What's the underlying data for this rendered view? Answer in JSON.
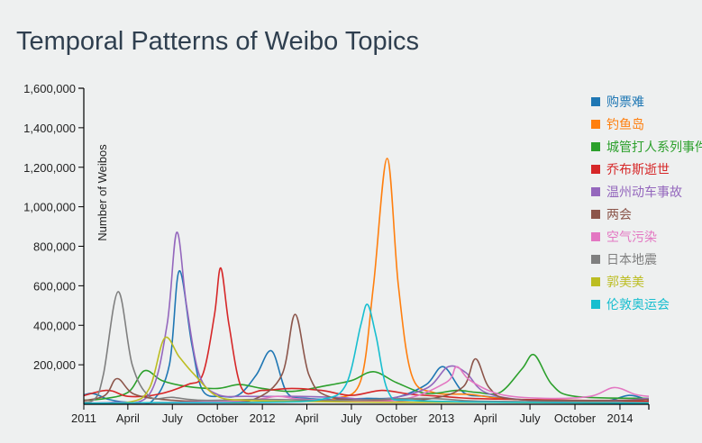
{
  "page": {
    "title": "Temporal Patterns of Weibo Topics"
  },
  "chart_data": {
    "type": "line",
    "title": "Temporal Patterns of Weibo Topics",
    "ylabel": "Number of Weibos",
    "xlabel": "",
    "ylim": [
      0,
      1600000
    ],
    "y_ticks": [
      200000,
      400000,
      600000,
      800000,
      1000000,
      1200000,
      1400000,
      1600000
    ],
    "y_tick_labels": [
      "200,000",
      "400,000",
      "600,000",
      "800,000",
      "1,000,000",
      "1,200,000",
      "1,400,000",
      "1,600,000"
    ],
    "x_start": "2011-01-01",
    "x_end": "2014-03-01",
    "x_ticks": [
      "2011-01-01",
      "2011-04-01",
      "2011-07-01",
      "2011-10-01",
      "2012-01-01",
      "2012-04-01",
      "2012-07-01",
      "2012-10-01",
      "2013-01-01",
      "2013-04-01",
      "2013-07-01",
      "2013-10-01",
      "2014-01-01"
    ],
    "x_tick_labels": [
      "2011",
      "April",
      "July",
      "October",
      "2012",
      "April",
      "July",
      "October",
      "2013",
      "April",
      "July",
      "October",
      "2014"
    ],
    "legend_position": "right",
    "series": [
      {
        "name": "购票难",
        "color": "#1f77b4",
        "points": [
          [
            "2010-12-01",
            15000
          ],
          [
            "2011-01-15",
            55000
          ],
          [
            "2011-02-20",
            25000
          ],
          [
            "2011-04-01",
            10000
          ],
          [
            "2011-05-20",
            15000
          ],
          [
            "2011-06-25",
            200000
          ],
          [
            "2011-07-15",
            675000
          ],
          [
            "2011-08-10",
            300000
          ],
          [
            "2011-09-01",
            70000
          ],
          [
            "2011-10-10",
            40000
          ],
          [
            "2011-11-15",
            50000
          ],
          [
            "2011-12-20",
            150000
          ],
          [
            "2012-01-20",
            270000
          ],
          [
            "2012-02-20",
            60000
          ],
          [
            "2012-04-01",
            30000
          ],
          [
            "2012-06-01",
            25000
          ],
          [
            "2012-08-01",
            30000
          ],
          [
            "2012-10-01",
            35000
          ],
          [
            "2012-12-01",
            100000
          ],
          [
            "2013-01-05",
            190000
          ],
          [
            "2013-02-15",
            60000
          ],
          [
            "2013-04-01",
            40000
          ],
          [
            "2013-06-01",
            25000
          ],
          [
            "2013-09-01",
            15000
          ],
          [
            "2013-12-01",
            15000
          ],
          [
            "2014-01-20",
            45000
          ],
          [
            "2014-03-01",
            20000
          ]
        ]
      },
      {
        "name": "钓鱼岛",
        "color": "#ff7f0e",
        "points": [
          [
            "2010-12-01",
            5000
          ],
          [
            "2011-06-01",
            8000
          ],
          [
            "2011-12-01",
            10000
          ],
          [
            "2012-04-01",
            15000
          ],
          [
            "2012-06-01",
            30000
          ],
          [
            "2012-07-20",
            120000
          ],
          [
            "2012-08-15",
            600000
          ],
          [
            "2012-09-12",
            1245000
          ],
          [
            "2012-10-05",
            600000
          ],
          [
            "2012-11-01",
            150000
          ],
          [
            "2012-12-15",
            60000
          ],
          [
            "2013-03-01",
            50000
          ],
          [
            "2013-06-01",
            25000
          ],
          [
            "2014-03-01",
            15000
          ]
        ]
      },
      {
        "name": "城管打人系列事件",
        "color": "#2ca02c",
        "points": [
          [
            "2010-12-01",
            20000
          ],
          [
            "2011-02-01",
            25000
          ],
          [
            "2011-04-01",
            60000
          ],
          [
            "2011-05-05",
            170000
          ],
          [
            "2011-06-10",
            120000
          ],
          [
            "2011-08-01",
            90000
          ],
          [
            "2011-10-01",
            80000
          ],
          [
            "2011-11-15",
            100000
          ],
          [
            "2012-01-01",
            80000
          ],
          [
            "2012-03-01",
            65000
          ],
          [
            "2012-05-01",
            90000
          ],
          [
            "2012-07-01",
            120000
          ],
          [
            "2012-08-15",
            165000
          ],
          [
            "2012-10-01",
            110000
          ],
          [
            "2012-12-01",
            55000
          ],
          [
            "2013-02-01",
            70000
          ],
          [
            "2013-03-15",
            60000
          ],
          [
            "2013-05-01",
            60000
          ],
          [
            "2013-06-15",
            180000
          ],
          [
            "2013-07-10",
            250000
          ],
          [
            "2013-08-15",
            100000
          ],
          [
            "2013-10-01",
            40000
          ],
          [
            "2014-03-01",
            30000
          ]
        ]
      },
      {
        "name": "乔布斯逝世",
        "color": "#d62728",
        "points": [
          [
            "2010-12-01",
            20000
          ],
          [
            "2011-02-15",
            70000
          ],
          [
            "2011-04-01",
            40000
          ],
          [
            "2011-06-01",
            50000
          ],
          [
            "2011-08-01",
            100000
          ],
          [
            "2011-09-01",
            150000
          ],
          [
            "2011-09-25",
            450000
          ],
          [
            "2011-10-08",
            690000
          ],
          [
            "2011-10-25",
            400000
          ],
          [
            "2011-11-20",
            80000
          ],
          [
            "2012-01-01",
            70000
          ],
          [
            "2012-03-01",
            80000
          ],
          [
            "2012-05-01",
            70000
          ],
          [
            "2012-07-01",
            45000
          ],
          [
            "2012-09-01",
            70000
          ],
          [
            "2012-11-01",
            50000
          ],
          [
            "2013-01-01",
            40000
          ],
          [
            "2013-03-01",
            30000
          ],
          [
            "2013-06-01",
            25000
          ],
          [
            "2013-10-01",
            20000
          ],
          [
            "2014-03-01",
            15000
          ]
        ]
      },
      {
        "name": "温州动车事故",
        "color": "#9467bd",
        "points": [
          [
            "2010-12-01",
            8000
          ],
          [
            "2011-03-01",
            10000
          ],
          [
            "2011-05-15",
            50000
          ],
          [
            "2011-06-20",
            400000
          ],
          [
            "2011-07-10",
            870000
          ],
          [
            "2011-07-30",
            500000
          ],
          [
            "2011-08-25",
            150000
          ],
          [
            "2011-10-01",
            50000
          ],
          [
            "2011-12-01",
            40000
          ],
          [
            "2012-03-01",
            40000
          ],
          [
            "2012-06-01",
            35000
          ],
          [
            "2012-09-01",
            25000
          ],
          [
            "2012-12-01",
            80000
          ],
          [
            "2013-01-15",
            190000
          ],
          [
            "2013-02-20",
            160000
          ],
          [
            "2013-04-01",
            60000
          ],
          [
            "2013-07-01",
            20000
          ],
          [
            "2013-12-01",
            15000
          ],
          [
            "2014-03-01",
            30000
          ]
        ]
      },
      {
        "name": "两会",
        "color": "#8c564b",
        "points": [
          [
            "2010-12-01",
            10000
          ],
          [
            "2011-02-10",
            40000
          ],
          [
            "2011-03-10",
            130000
          ],
          [
            "2011-04-15",
            50000
          ],
          [
            "2011-07-01",
            20000
          ],
          [
            "2011-10-01",
            15000
          ],
          [
            "2011-12-15",
            25000
          ],
          [
            "2012-02-10",
            150000
          ],
          [
            "2012-03-08",
            455000
          ],
          [
            "2012-04-05",
            150000
          ],
          [
            "2012-05-15",
            40000
          ],
          [
            "2012-09-01",
            20000
          ],
          [
            "2012-12-15",
            30000
          ],
          [
            "2013-02-15",
            90000
          ],
          [
            "2013-03-12",
            230000
          ],
          [
            "2013-04-10",
            80000
          ],
          [
            "2013-06-01",
            25000
          ],
          [
            "2014-01-01",
            20000
          ],
          [
            "2014-03-01",
            25000
          ]
        ]
      },
      {
        "name": "空气污染",
        "color": "#e377c2",
        "points": [
          [
            "2010-12-01",
            5000
          ],
          [
            "2011-06-01",
            8000
          ],
          [
            "2011-12-01",
            20000
          ],
          [
            "2012-02-01",
            40000
          ],
          [
            "2012-04-01",
            25000
          ],
          [
            "2012-10-01",
            20000
          ],
          [
            "2013-01-10",
            110000
          ],
          [
            "2013-02-01",
            190000
          ],
          [
            "2013-03-01",
            120000
          ],
          [
            "2013-05-01",
            50000
          ],
          [
            "2013-08-01",
            30000
          ],
          [
            "2013-11-01",
            40000
          ],
          [
            "2013-12-20",
            85000
          ],
          [
            "2014-02-01",
            50000
          ],
          [
            "2014-03-01",
            40000
          ]
        ]
      },
      {
        "name": "日本地震",
        "color": "#7f7f7f",
        "points": [
          [
            "2010-12-01",
            20000
          ],
          [
            "2011-01-20",
            20000
          ],
          [
            "2011-02-10",
            150000
          ],
          [
            "2011-03-12",
            570000
          ],
          [
            "2011-04-10",
            200000
          ],
          [
            "2011-05-15",
            40000
          ],
          [
            "2011-07-01",
            35000
          ],
          [
            "2011-09-01",
            20000
          ],
          [
            "2012-01-01",
            25000
          ],
          [
            "2012-06-01",
            20000
          ],
          [
            "2012-12-01",
            30000
          ],
          [
            "2013-04-01",
            15000
          ],
          [
            "2014-03-01",
            10000
          ]
        ]
      },
      {
        "name": "郭美美",
        "color": "#bcbd22",
        "points": [
          [
            "2010-12-01",
            5000
          ],
          [
            "2011-04-01",
            10000
          ],
          [
            "2011-05-15",
            80000
          ],
          [
            "2011-06-15",
            335000
          ],
          [
            "2011-07-15",
            240000
          ],
          [
            "2011-08-15",
            150000
          ],
          [
            "2011-10-01",
            40000
          ],
          [
            "2011-12-01",
            20000
          ],
          [
            "2012-03-01",
            15000
          ],
          [
            "2012-10-01",
            10000
          ],
          [
            "2013-04-01",
            10000
          ],
          [
            "2014-03-01",
            5000
          ]
        ]
      },
      {
        "name": "伦敦奥运会",
        "color": "#17becf",
        "points": [
          [
            "2010-12-01",
            5000
          ],
          [
            "2011-06-01",
            8000
          ],
          [
            "2012-01-01",
            10000
          ],
          [
            "2012-05-01",
            25000
          ],
          [
            "2012-06-20",
            100000
          ],
          [
            "2012-07-20",
            400000
          ],
          [
            "2012-08-03",
            505000
          ],
          [
            "2012-08-20",
            350000
          ],
          [
            "2012-09-15",
            60000
          ],
          [
            "2012-11-01",
            20000
          ],
          [
            "2013-06-01",
            10000
          ],
          [
            "2014-03-01",
            5000
          ]
        ]
      }
    ]
  }
}
